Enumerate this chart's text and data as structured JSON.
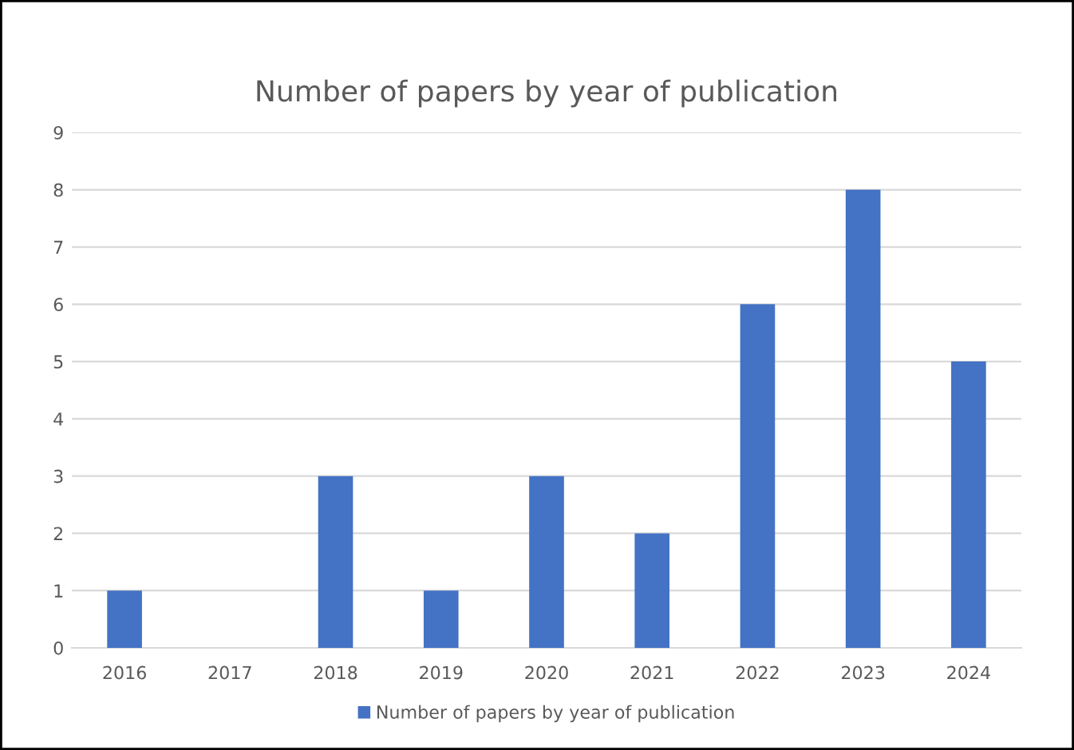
{
  "chart_data": {
    "type": "bar",
    "title": "Number of papers by year of publication",
    "categories": [
      "2016",
      "2017",
      "2018",
      "2019",
      "2020",
      "2021",
      "2022",
      "2023",
      "2024"
    ],
    "series": [
      {
        "name": "Number of papers by year of publication",
        "color": "#4472c4",
        "values": [
          1,
          0,
          3,
          1,
          3,
          2,
          6,
          8,
          5
        ]
      }
    ],
    "ylim": [
      0,
      9
    ],
    "yticks": [
      0,
      1,
      2,
      3,
      4,
      5,
      6,
      7,
      8,
      9
    ],
    "grid": "y",
    "legend": "bottom"
  }
}
